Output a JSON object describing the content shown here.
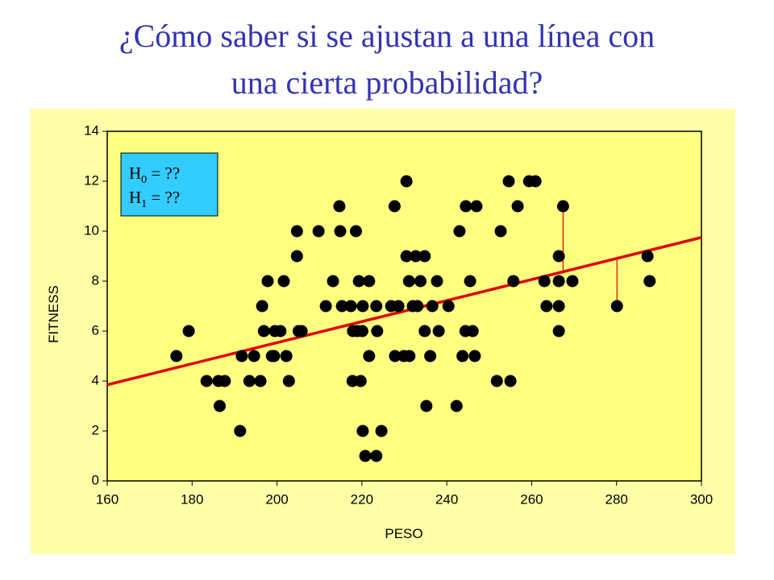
{
  "chart_data": {
    "type": "scatter",
    "title": [
      "¿Cómo saber si se ajustan a una línea con",
      "una cierta probabilidad?"
    ],
    "x_label": "PESO",
    "y_label": "FITNESS",
    "xlim": [
      160,
      300
    ],
    "ylim": [
      0,
      14
    ],
    "xticks": [
      160,
      180,
      200,
      220,
      240,
      260,
      280,
      300
    ],
    "yticks": [
      0,
      2,
      4,
      6,
      8,
      10,
      12,
      14
    ],
    "color": "#000000",
    "x": [
      176.3,
      179.2,
      183.4,
      186.2,
      187.7,
      186.5,
      191.3,
      191.7,
      194.6,
      193.5,
      196.1,
      196.5,
      196.9,
      197.8,
      198.8,
      199.5,
      199.3,
      200.8,
      201.6,
      202.2,
      202.8,
      204.7,
      204.7,
      205.1,
      205.8,
      209.8,
      211.5,
      213.2,
      214.7,
      214.9,
      215.3,
      217.4,
      217.9,
      217.8,
      218.6,
      218.9,
      219.3,
      219.7,
      220.1,
      220.2,
      220.2,
      220.8,
      221.7,
      221.7,
      223.4,
      223.6,
      223.4,
      224.6,
      226.9,
      227.7,
      227.8,
      228.6,
      229.9,
      230.5,
      230.5,
      231.1,
      231.2,
      232.0,
      232.7,
      233.1,
      233.8,
      234.8,
      234.8,
      235.2,
      236.1,
      236.6,
      237.7,
      238.1,
      240.4,
      242.3,
      243.0,
      243.7,
      244.4,
      244.5,
      245.5,
      246.1,
      246.6,
      247.0,
      251.8,
      252.7,
      254.6,
      255.0,
      255.7,
      256.7,
      259.4,
      260.9,
      263.0,
      263.5,
      266.4,
      266.4,
      266.4,
      266.4,
      267.4,
      269.6,
      280.1,
      287.3,
      287.8
    ],
    "values": [
      5,
      6,
      4,
      4,
      4,
      3,
      2,
      5,
      5,
      4,
      4,
      7,
      6,
      8,
      5,
      6,
      5,
      6,
      8,
      5,
      4,
      9,
      10,
      6,
      6,
      10,
      7,
      8,
      11,
      10,
      7,
      7,
      6,
      4,
      10,
      6,
      8,
      4,
      6,
      2,
      7,
      1,
      8,
      5,
      1,
      6,
      7,
      2,
      7,
      11,
      5,
      7,
      5,
      12,
      9,
      8,
      5,
      7,
      9,
      7,
      8,
      9,
      6,
      3,
      5,
      7,
      8,
      6,
      7,
      3,
      10,
      5,
      6,
      11,
      8,
      6,
      5,
      11,
      4,
      10,
      12,
      4,
      8,
      11,
      12,
      12,
      8,
      7,
      9,
      8,
      7,
      6,
      11,
      8,
      7,
      9,
      8
    ],
    "trend_line": {
      "x": [
        160,
        300
      ],
      "y": [
        3.85,
        9.75
      ],
      "color": "#e00000"
    },
    "residuals": [
      {
        "x": 267.4,
        "y": 11
      },
      {
        "x": 280.1,
        "y": 7
      }
    ],
    "annotation": [
      {
        "base": "H",
        "sub": "0",
        "rest": " = ??"
      },
      {
        "base": "H",
        "sub": "1",
        "rest": " = ??"
      }
    ],
    "annotation_color": "#33ccff",
    "background": "#ffffa8",
    "plot_background": "#ffff80"
  }
}
